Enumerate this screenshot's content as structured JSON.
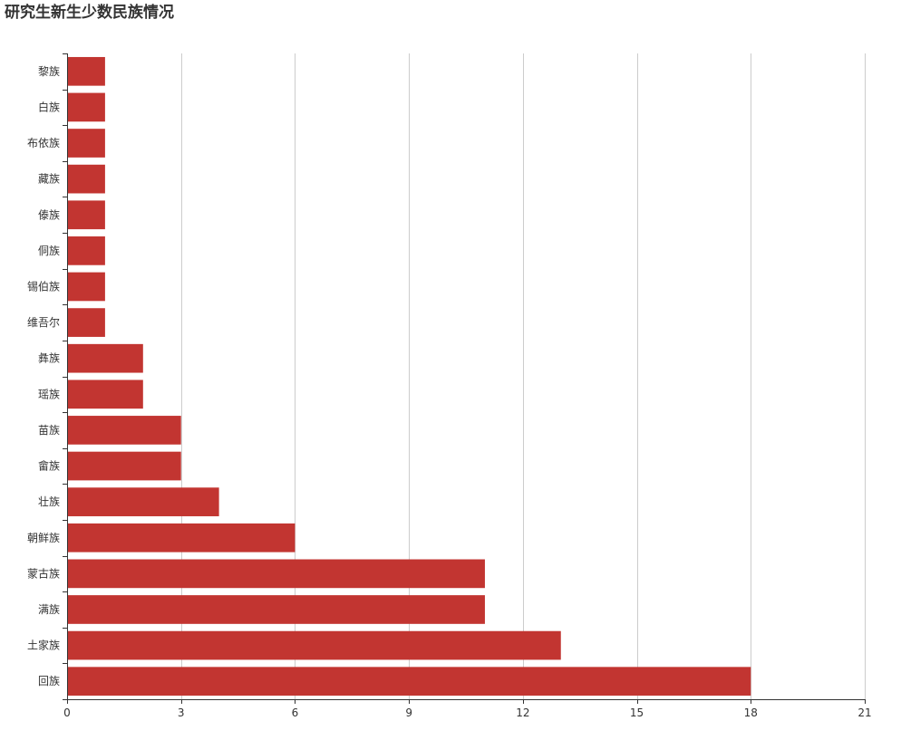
{
  "chart_data": {
    "type": "bar",
    "orientation": "horizontal",
    "title": "研究生新生少数民族情况",
    "categories": [
      "黎族",
      "白族",
      "布依族",
      "藏族",
      "傣族",
      "侗族",
      "锡伯族",
      "维吾尔",
      "彝族",
      "瑶族",
      "苗族",
      "畲族",
      "壮族",
      "朝鲜族",
      "蒙古族",
      "满族",
      "土家族",
      "回族"
    ],
    "values": [
      1,
      1,
      1,
      1,
      1,
      1,
      1,
      1,
      2,
      2,
      3,
      3,
      4,
      6,
      11,
      11,
      13,
      18
    ],
    "xlim": [
      0,
      21
    ],
    "xticks": [
      0,
      3,
      6,
      9,
      12,
      15,
      18,
      21
    ],
    "xlabel": "",
    "ylabel": "",
    "grid": "vertical",
    "legend": "none",
    "colors": {
      "bar": "#c23531",
      "grid": "#cccccc",
      "axis": "#333333"
    }
  }
}
